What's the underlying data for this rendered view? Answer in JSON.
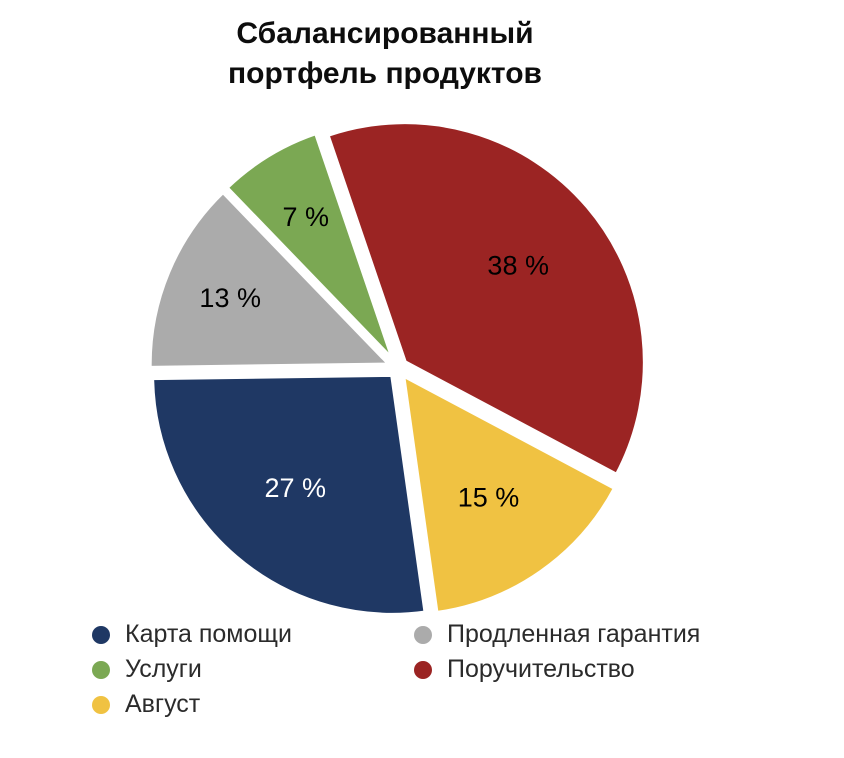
{
  "chart_data": {
    "type": "pie",
    "title": "Сбалансированный портфель продуктов",
    "start_angle_deg": -18.8,
    "clockwise": true,
    "gap_color": "#ffffff",
    "slices": [
      {
        "id": "poruchitelstvo",
        "label": "Поручительство",
        "value": 38,
        "pct_label": "38 %",
        "color": "#9B2423",
        "label_color": "#000000"
      },
      {
        "id": "avgust",
        "label": "Август",
        "value": 15,
        "pct_label": "15 %",
        "color": "#F0C242",
        "label_color": "#000000"
      },
      {
        "id": "karta-pomoshchi",
        "label": "Карта помощи",
        "value": 27,
        "pct_label": "27 %",
        "color": "#1F3864",
        "label_color": "#FFFFFF"
      },
      {
        "id": "prodlennaya-garantiya",
        "label": "Продленная гарантия",
        "value": 13,
        "pct_label": "13 %",
        "color": "#ABABAB",
        "label_color": "#000000"
      },
      {
        "id": "uslugi",
        "label": "Услуги",
        "value": 7,
        "pct_label": "7 %",
        "color": "#7BA853",
        "label_color": "#000000"
      }
    ],
    "legend": {
      "position": "bottom",
      "columns": 2,
      "order": [
        2,
        3,
        4,
        0,
        1
      ]
    }
  }
}
